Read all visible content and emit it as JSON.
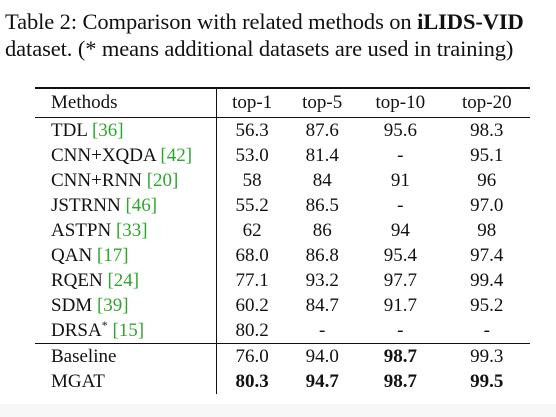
{
  "caption": {
    "line1_prefix": "Table 2: Comparison with related methods on ",
    "line1_dataset": "iLIDS-VID",
    "line2": "dataset. (* means additional datasets are used in training)"
  },
  "table": {
    "columns": [
      "Methods",
      "top-1",
      "top-5",
      "top-10",
      "top-20"
    ],
    "rows": [
      {
        "method": "TDL",
        "mark": "",
        "cite": "[36]",
        "values": [
          "56.3",
          "87.6",
          "95.6",
          "98.3"
        ]
      },
      {
        "method": "CNN+XQDA",
        "mark": "",
        "cite": "[42]",
        "values": [
          "53.0",
          "81.4",
          "-",
          "95.1"
        ]
      },
      {
        "method": "CNN+RNN",
        "mark": "",
        "cite": "[20]",
        "values": [
          "58",
          "84",
          "91",
          "96"
        ]
      },
      {
        "method": "JSTRNN",
        "mark": "",
        "cite": "[46]",
        "values": [
          "55.2",
          "86.5",
          "-",
          "97.0"
        ]
      },
      {
        "method": "ASTPN",
        "mark": "",
        "cite": "[33]",
        "values": [
          "62",
          "86",
          "94",
          "98"
        ]
      },
      {
        "method": "QAN",
        "mark": "",
        "cite": "[17]",
        "values": [
          "68.0",
          "86.8",
          "95.4",
          "97.4"
        ]
      },
      {
        "method": "RQEN",
        "mark": "",
        "cite": "[24]",
        "values": [
          "77.1",
          "93.2",
          "97.7",
          "99.4"
        ]
      },
      {
        "method": "SDM",
        "mark": "",
        "cite": "[39]",
        "values": [
          "60.2",
          "84.7",
          "91.7",
          "95.2"
        ]
      },
      {
        "method": "DRSA",
        "mark": "*",
        "cite": "[15]",
        "values": [
          "80.2",
          "-",
          "-",
          "-"
        ]
      }
    ],
    "ours": [
      {
        "method": "Baseline",
        "values": [
          "76.0",
          "94.0",
          "98.7",
          "99.3"
        ],
        "bold": [
          false,
          false,
          true,
          false
        ]
      },
      {
        "method": "MGAT",
        "values": [
          "80.3",
          "94.7",
          "98.7",
          "99.5"
        ],
        "bold": [
          true,
          true,
          true,
          true
        ]
      }
    ]
  }
}
